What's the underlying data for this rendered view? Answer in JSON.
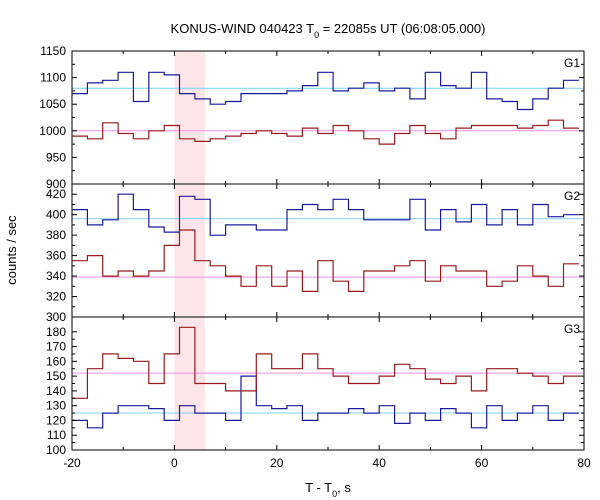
{
  "chart_data": {
    "type": "line",
    "title_parts": [
      "KONUS-WIND 040423 T",
      "0",
      " = 22085s UT (06:08:05.000)"
    ],
    "xlabel_parts": [
      "T - T",
      "0",
      ", s"
    ],
    "ylabel": "counts / sec",
    "xlim": [
      -20,
      80
    ],
    "x_ticks": [
      -20,
      0,
      20,
      40,
      60,
      80
    ],
    "highlight": {
      "x_start": 0,
      "x_end": 6,
      "color": "#fde6ea"
    },
    "bin_edges": [
      -20,
      -17,
      -14,
      -11,
      -8,
      -5,
      -2,
      1,
      4,
      7,
      10,
      13,
      16,
      19,
      22,
      25,
      28,
      31,
      34,
      37,
      40,
      43,
      46,
      49,
      52,
      55,
      58,
      61,
      64,
      67,
      70,
      73,
      76,
      79
    ],
    "panels": [
      {
        "label": "G1",
        "ylim": [
          900,
          1150
        ],
        "y_ticks": [
          900,
          950,
          1000,
          1050,
          1100,
          1150
        ],
        "series": [
          {
            "color": "#1a1aa0",
            "values": [
              1070,
              1090,
              1095,
              1110,
              1055,
              1110,
              1105,
              1070,
              1060,
              1050,
              1055,
              1070,
              1070,
              1070,
              1075,
              1085,
              1110,
              1075,
              1080,
              1090,
              1075,
              1080,
              1060,
              1110,
              1085,
              1080,
              1110,
              1060,
              1055,
              1040,
              1060,
              1080,
              1095
            ]
          },
          {
            "color": "#9a1b1b",
            "values": [
              990,
              985,
              1015,
              995,
              985,
              1000,
              1010,
              985,
              980,
              985,
              990,
              995,
              1000,
              995,
              990,
              1005,
              995,
              1010,
              1000,
              985,
              975,
              995,
              1010,
              995,
              985,
              1005,
              1010,
              1010,
              1010,
              1005,
              1010,
              1020,
              1005
            ]
          }
        ],
        "baselines": [
          {
            "color": "#7fd0f0",
            "value": 1080
          },
          {
            "color": "#f090e0",
            "value": 1000
          }
        ]
      },
      {
        "label": "G2",
        "ylim": [
          300,
          430
        ],
        "y_ticks": [
          300,
          320,
          340,
          360,
          380,
          400,
          420
        ],
        "series": [
          {
            "color": "#1a1aa0",
            "values": [
              405,
              390,
              395,
              420,
              405,
              388,
              383,
              418,
              415,
              380,
              390,
              390,
              385,
              385,
              405,
              410,
              405,
              415,
              405,
              395,
              395,
              395,
              415,
              385,
              405,
              393,
              410,
              390,
              405,
              390,
              410,
              398,
              400
            ]
          },
          {
            "color": "#9a1b1b",
            "values": [
              355,
              360,
              340,
              345,
              340,
              345,
              370,
              385,
              355,
              350,
              340,
              330,
              350,
              330,
              345,
              325,
              355,
              335,
              325,
              345,
              345,
              350,
              355,
              335,
              350,
              345,
              345,
              330,
              335,
              350,
              340,
              330,
              352
            ]
          }
        ],
        "baselines": [
          {
            "color": "#7fd0f0",
            "value": 396
          },
          {
            "color": "#f090e0",
            "value": 339
          }
        ]
      },
      {
        "label": "G3",
        "ylim": [
          100,
          190
        ],
        "y_ticks": [
          100,
          110,
          120,
          130,
          140,
          150,
          160,
          170,
          180
        ],
        "series": [
          {
            "color": "#1a1aa0",
            "values": [
              120,
              115,
              125,
              130,
              130,
              128,
              120,
              130,
              125,
              125,
              120,
              150,
              130,
              128,
              130,
              120,
              125,
              125,
              128,
              125,
              130,
              118,
              125,
              120,
              128,
              125,
              115,
              130,
              120,
              125,
              130,
              120,
              125
            ]
          },
          {
            "color": "#9a1b1b",
            "values": [
              135,
              155,
              165,
              162,
              160,
              145,
              165,
              183,
              145,
              145,
              140,
              140,
              165,
              155,
              155,
              165,
              155,
              150,
              145,
              145,
              150,
              158,
              155,
              148,
              145,
              150,
              140,
              155,
              155,
              152,
              150,
              145,
              150
            ]
          }
        ],
        "baselines": [
          {
            "color": "#7fd0f0",
            "value": 125
          },
          {
            "color": "#f090e0",
            "value": 152
          }
        ]
      }
    ]
  }
}
